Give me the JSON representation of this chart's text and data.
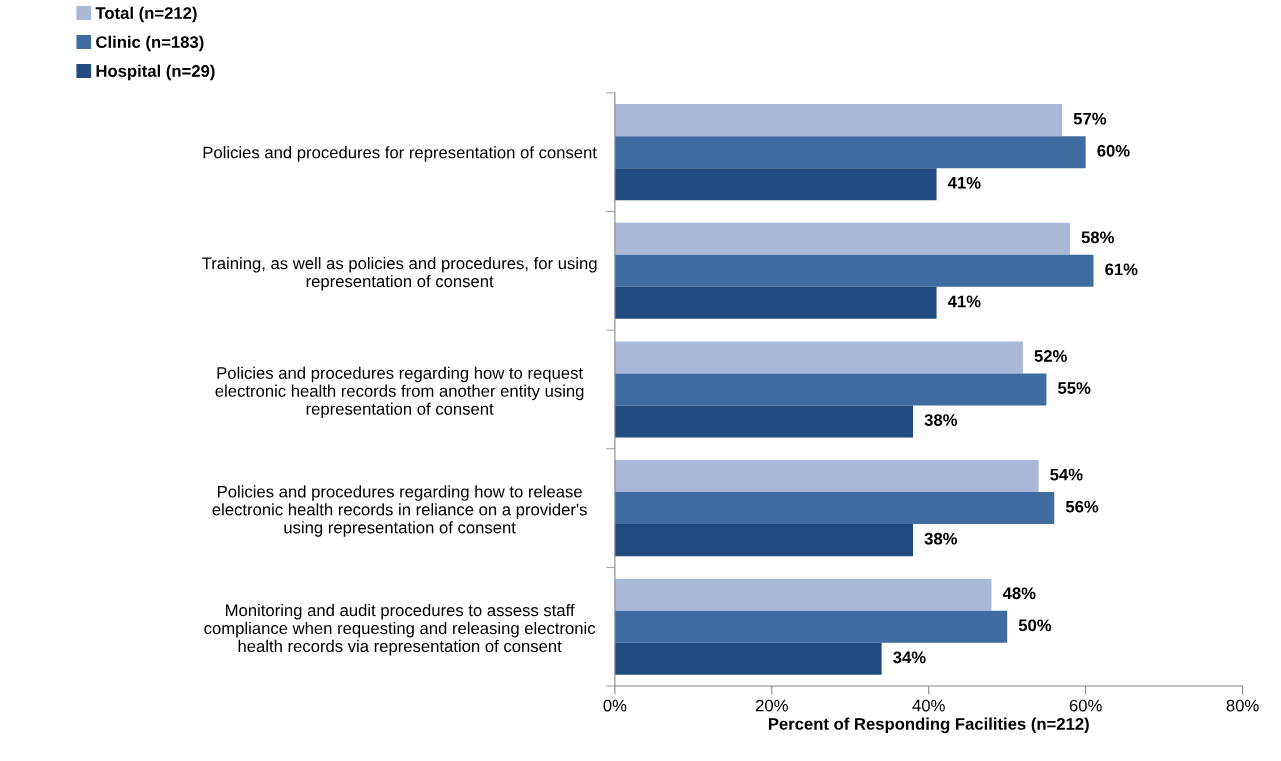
{
  "chart_data": {
    "type": "bar",
    "orientation": "horizontal",
    "categories": [
      "Policies and procedures for representation of consent",
      "Training, as well as policies and procedures, for using\nrepresentation of consent",
      "Policies and procedures regarding how to request\nelectronic health records from another entity using\nrepresentation of consent",
      "Policies and procedures regarding how to release\nelectronic health records in reliance on a provider's\nusing representation of consent",
      "Monitoring and audit procedures to assess staff\ncompliance when requesting and releasing electronic\nhealth records via representation of consent"
    ],
    "series": [
      {
        "name": "Total (n=212)",
        "color": "#a9b8d9",
        "values": [
          57,
          58,
          52,
          54,
          48
        ],
        "value_labels": [
          "57%",
          "58%",
          "52%",
          "54%",
          "48%"
        ]
      },
      {
        "name": "Clinic (n=183)",
        "color": "#3f6ba1",
        "values": [
          60,
          61,
          55,
          56,
          50
        ],
        "value_labels": [
          "60%",
          "61%",
          "55%",
          "56%",
          "50%"
        ]
      },
      {
        "name": "Hospital (n=29)",
        "color": "#214a7e",
        "values": [
          41,
          41,
          38,
          38,
          34
        ],
        "value_labels": [
          "41%",
          "41%",
          "38%",
          "38%",
          "34%"
        ]
      }
    ],
    "xlabel": "Percent of Responding Facilities (n=212)",
    "xlim": [
      0,
      80
    ],
    "xticks": [
      {
        "value": 0,
        "label": "0%"
      },
      {
        "value": 20,
        "label": "20%"
      },
      {
        "value": 40,
        "label": "40%"
      },
      {
        "value": 60,
        "label": "60%"
      },
      {
        "value": 80,
        "label": "80%"
      }
    ],
    "legend": "top left",
    "grid": false
  }
}
